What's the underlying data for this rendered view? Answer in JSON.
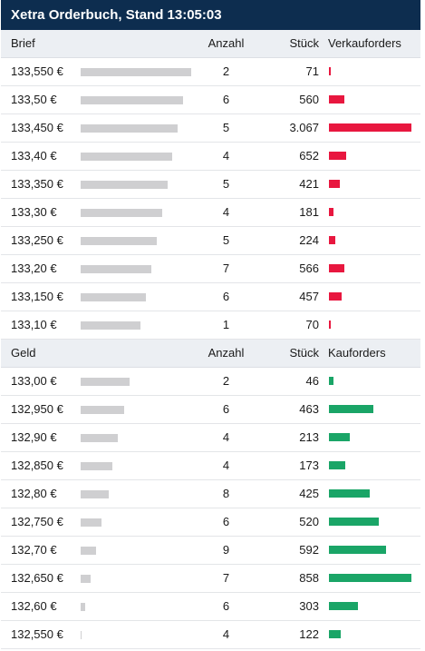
{
  "title": "Xetra Orderbuch, Stand 13:05:03",
  "ask": {
    "header": {
      "price": "Brief",
      "count": "Anzahl",
      "qty": "Stück",
      "bar": "Verkauforders"
    },
    "rows": [
      {
        "price": "133,550 €",
        "count": "2",
        "qty": "71",
        "qty_value": 71,
        "pct": 100
      },
      {
        "price": "133,50 €",
        "count": "6",
        "qty": "560",
        "qty_value": 560,
        "pct": 93
      },
      {
        "price": "133,450 €",
        "count": "5",
        "qty": "3.067",
        "qty_value": 3067,
        "pct": 88
      },
      {
        "price": "133,40 €",
        "count": "4",
        "qty": "652",
        "qty_value": 652,
        "pct": 83
      },
      {
        "price": "133,350 €",
        "count": "5",
        "qty": "421",
        "qty_value": 421,
        "pct": 79
      },
      {
        "price": "133,30 €",
        "count": "4",
        "qty": "181",
        "qty_value": 181,
        "pct": 74
      },
      {
        "price": "133,250 €",
        "count": "5",
        "qty": "224",
        "qty_value": 224,
        "pct": 69
      },
      {
        "price": "133,20 €",
        "count": "7",
        "qty": "566",
        "qty_value": 566,
        "pct": 64
      },
      {
        "price": "133,150 €",
        "count": "6",
        "qty": "457",
        "qty_value": 457,
        "pct": 59
      },
      {
        "price": "133,10 €",
        "count": "1",
        "qty": "70",
        "qty_value": 70,
        "pct": 54
      }
    ]
  },
  "bid": {
    "header": {
      "price": "Geld",
      "count": "Anzahl",
      "qty": "Stück",
      "bar": "Kauforders"
    },
    "rows": [
      {
        "price": "133,00 €",
        "count": "2",
        "qty": "46",
        "qty_value": 46,
        "pct": 44
      },
      {
        "price": "132,950 €",
        "count": "6",
        "qty": "463",
        "qty_value": 463,
        "pct": 39
      },
      {
        "price": "132,90 €",
        "count": "4",
        "qty": "213",
        "qty_value": 213,
        "pct": 34
      },
      {
        "price": "132,850 €",
        "count": "4",
        "qty": "173",
        "qty_value": 173,
        "pct": 29
      },
      {
        "price": "132,80 €",
        "count": "8",
        "qty": "425",
        "qty_value": 425,
        "pct": 25
      },
      {
        "price": "132,750 €",
        "count": "6",
        "qty": "520",
        "qty_value": 520,
        "pct": 19
      },
      {
        "price": "132,70 €",
        "count": "9",
        "qty": "592",
        "qty_value": 592,
        "pct": 14
      },
      {
        "price": "132,650 €",
        "count": "7",
        "qty": "858",
        "qty_value": 858,
        "pct": 9
      },
      {
        "price": "132,60 €",
        "count": "6",
        "qty": "303",
        "qty_value": 303,
        "pct": 4
      },
      {
        "price": "132,550 €",
        "count": "4",
        "qty": "122",
        "qty_value": 122,
        "pct": 1
      }
    ]
  },
  "colors": {
    "ask_bar": "#e8173f",
    "bid_bar": "#1aa567",
    "price_bar": "#cfcfd1",
    "title_bg": "#0d2d4f"
  }
}
